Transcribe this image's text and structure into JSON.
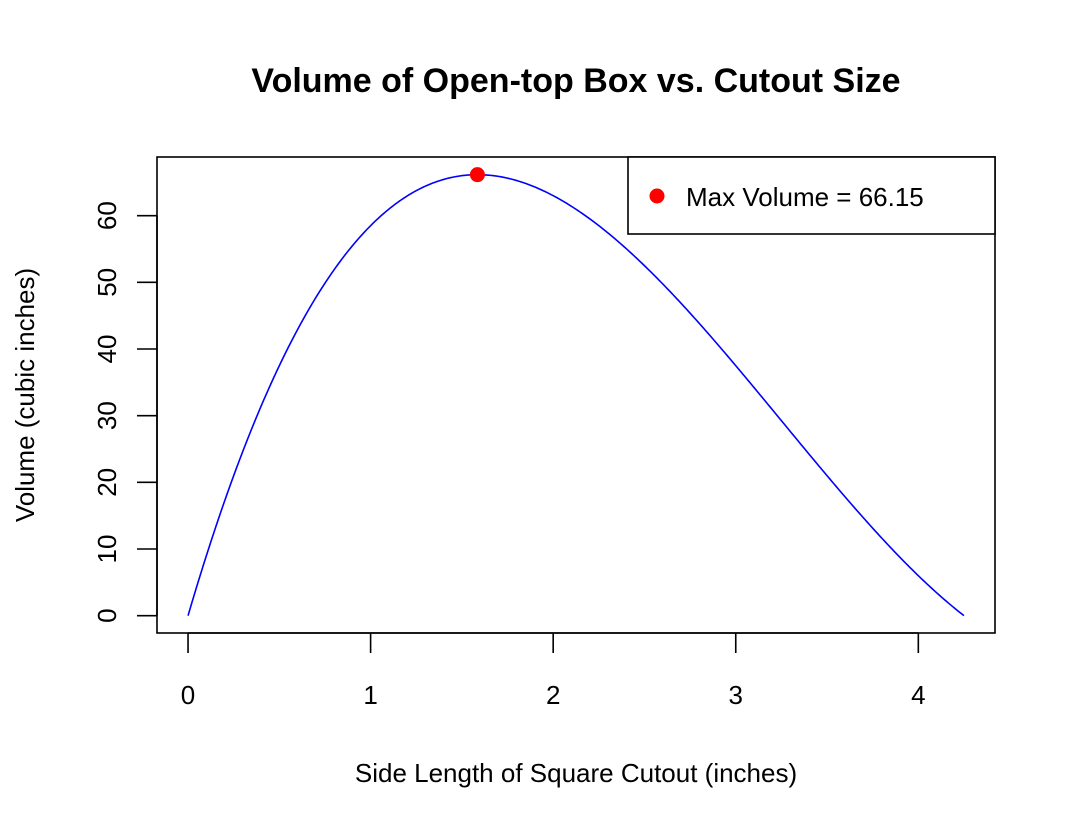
{
  "chart_data": {
    "type": "line",
    "title": "Volume of Open-top Box vs. Cutout Size",
    "xlabel": "Side Length of Square Cutout (inches)",
    "ylabel": "Volume (cubic inches)",
    "xlim": [
      -0.17,
      4.42
    ],
    "ylim": [
      -2.6,
      68.8
    ],
    "x_ticks": [
      0,
      1,
      2,
      3,
      4
    ],
    "x_tick_labels": [
      "0",
      "1",
      "2",
      "3",
      "4"
    ],
    "y_ticks": [
      0,
      10,
      20,
      30,
      40,
      50,
      60
    ],
    "y_tick_labels": [
      "0",
      "10",
      "20",
      "30",
      "40",
      "50",
      "60"
    ],
    "series": [
      {
        "style": "line",
        "color": "#0000FF",
        "function": "x*(11-2*x)*(8.5-2*x)",
        "x_range": [
          0,
          4.25
        ]
      }
    ],
    "max_point": {
      "x": 1.585,
      "y": 66.15,
      "color": "#FF0000"
    },
    "legend": {
      "position": "top-right",
      "entries": [
        {
          "label": "Max Volume = 66.15",
          "marker": "filled-circle",
          "color": "#FF0000"
        }
      ]
    },
    "grid": false
  }
}
